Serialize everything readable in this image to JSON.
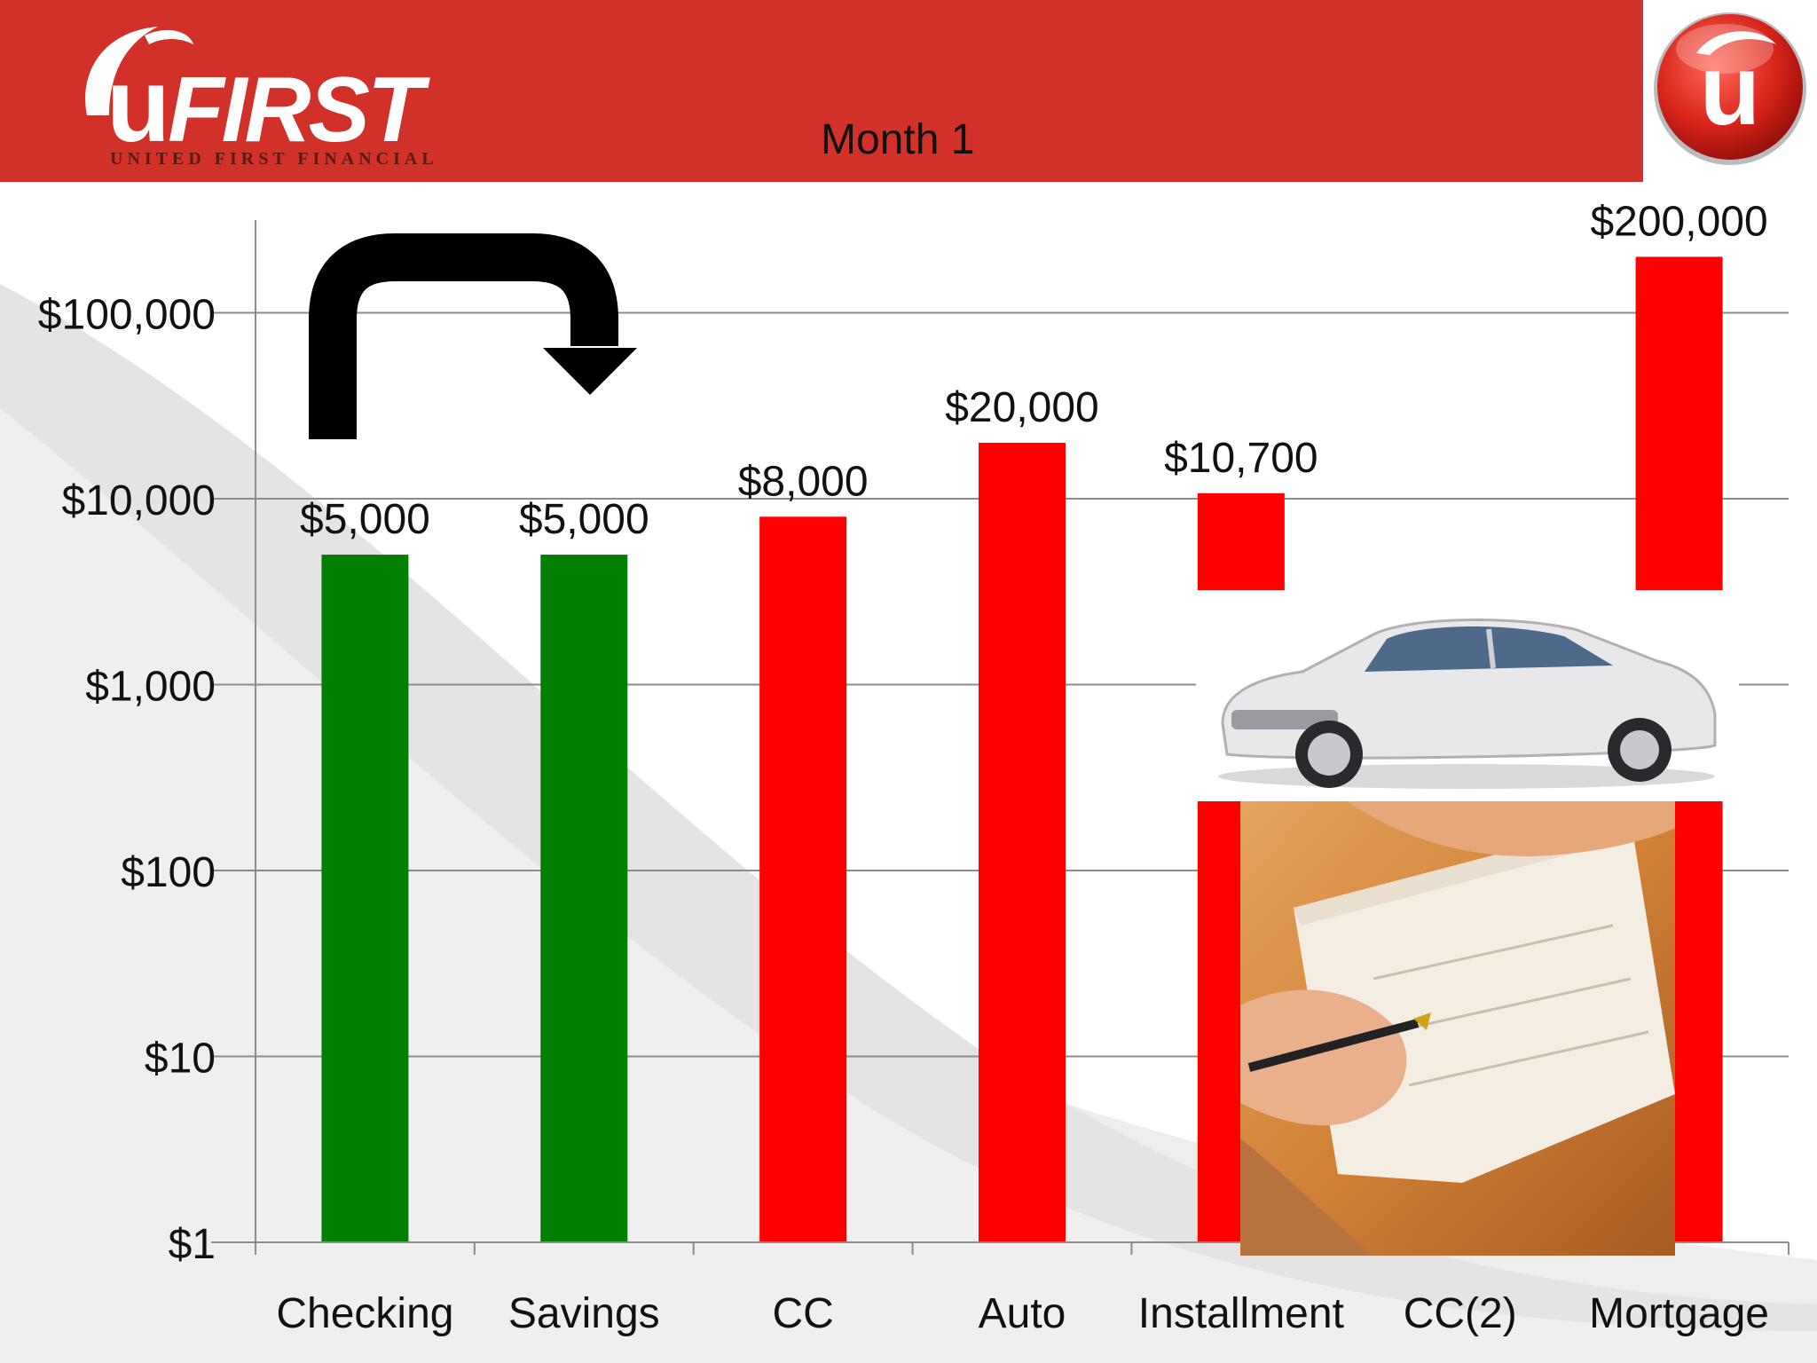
{
  "header": {
    "logo_text": "uFIRST",
    "logo_subtitle": "UNITED FIRST FINANCIAL",
    "slide_title": "Month 1"
  },
  "colors": {
    "header_red": "#d13128",
    "asset_green": "#007f00",
    "debt_red": "#ff0000"
  },
  "images": {
    "car": "silver-coupe-photo",
    "check": "check-writing-photo",
    "arrow": "curved-transfer-arrow-icon"
  },
  "chart_data": {
    "type": "bar",
    "title": "Month 1",
    "yscale": "log",
    "ylim": [
      1,
      300000
    ],
    "yticks": [
      1,
      10,
      100,
      1000,
      10000,
      100000
    ],
    "ytick_labels": [
      "$1",
      "$10",
      "$100",
      "$1,000",
      "$10,000",
      "$100,000"
    ],
    "categories": [
      "Checking",
      "Savings",
      "CC",
      "Auto",
      "Installment",
      "CC(2)",
      "Mortgage"
    ],
    "values": [
      5000,
      5000,
      8000,
      20000,
      10700,
      null,
      200000
    ],
    "data_labels": [
      "$5,000",
      "$5,000",
      "$8,000",
      "$20,000",
      "$10,700",
      "",
      "$200,000"
    ],
    "bar_colors": [
      "#007f00",
      "#007f00",
      "#ff0000",
      "#ff0000",
      "#ff0000",
      "#ff0000",
      "#ff0000"
    ],
    "grid": true,
    "legend": "none"
  }
}
